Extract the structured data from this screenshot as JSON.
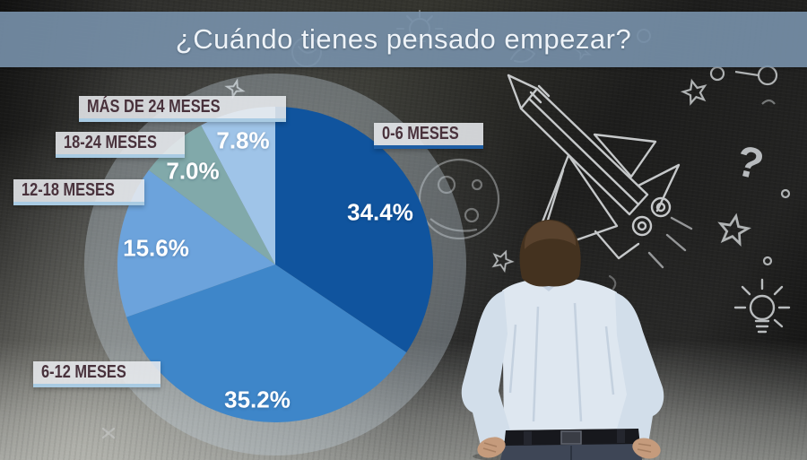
{
  "banner": {
    "title": "¿Cuándo tienes pensado empezar?"
  },
  "chart_data": {
    "type": "pie",
    "title": "¿Cuándo tienes pensado empezar?",
    "unit": "percent",
    "start_angle_deg": -90,
    "direction": "clockwise",
    "legend_position": "callout-labels-left",
    "slices": [
      {
        "label": "0-6 MESES",
        "value": 34.4,
        "pct_label": "34.4%",
        "color": "#10549e"
      },
      {
        "label": "6-12 MESES",
        "value": 35.2,
        "pct_label": "35.2%",
        "color": "#3e86c9"
      },
      {
        "label": "12-18 MESES",
        "value": 15.6,
        "pct_label": "15.6%",
        "color": "#6ca3dc"
      },
      {
        "label": "18-24 MESES",
        "value": 7.0,
        "pct_label": "7.0%",
        "color": "#81a9aa"
      },
      {
        "label": "MÁS DE 24 MESES",
        "value": 7.8,
        "pct_label": "7.8%",
        "color": "#9fc4e8"
      }
    ]
  },
  "colors": {
    "banner_bg": "#7891ab",
    "callout_bg": "#e9ecef",
    "callout_text": "#49323c",
    "underline_light": "#a9cbe3",
    "underline_dark": "#1e5ea4",
    "pct_text": "#ffffff",
    "chalk": "#e3e6e8"
  },
  "decorations": {
    "items": [
      "space-shuttle",
      "chalk-stars",
      "question-mark",
      "lightbulb",
      "planet",
      "spiral-scribble",
      "man-looking-at-chalkboard"
    ]
  }
}
